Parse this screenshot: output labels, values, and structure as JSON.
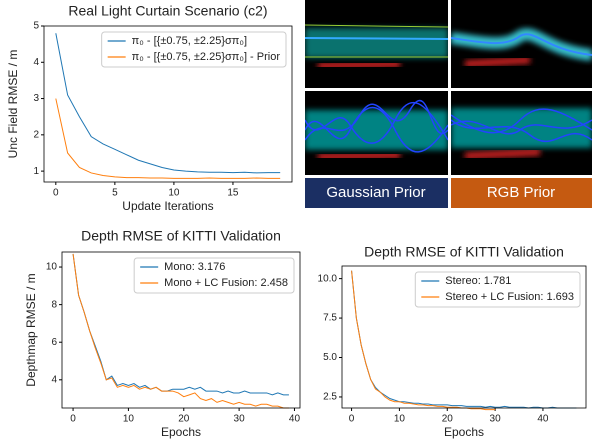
{
  "chart_data": [
    {
      "type": "line",
      "title": "Real Light Curtain Scenario (c2)",
      "xlabel": "Update Iterations",
      "ylabel": "Unc Field RMSE / m",
      "x": [
        0,
        1,
        2,
        3,
        4,
        5,
        6,
        7,
        8,
        9,
        10,
        11,
        12,
        13,
        14,
        15,
        16,
        17,
        18,
        19
      ],
      "series": [
        {
          "name": "π₀ - [{±0.75, ±2.25}σπ₀]",
          "color": "#1f77b4",
          "values": [
            4.8,
            3.1,
            2.5,
            1.95,
            1.75,
            1.6,
            1.45,
            1.3,
            1.2,
            1.1,
            1.03,
            1.0,
            0.98,
            0.97,
            0.97,
            0.96,
            0.97,
            0.95,
            0.96,
            0.96
          ]
        },
        {
          "name": "π₀ - [{±0.75, ±2.25}σπ₀] - Prior",
          "color": "#ff7f0e",
          "values": [
            3.0,
            1.5,
            1.1,
            0.95,
            0.88,
            0.84,
            0.82,
            0.82,
            0.81,
            0.81,
            0.8,
            0.8,
            0.8,
            0.81,
            0.8,
            0.8,
            0.8,
            0.81,
            0.8,
            0.8
          ]
        }
      ],
      "xlim": [
        -1,
        20
      ],
      "xticks": [
        0,
        5,
        10,
        15
      ],
      "ylim": [
        0.7,
        5.0
      ],
      "yticks": [
        1,
        2,
        3,
        4,
        5
      ],
      "legend": "upper right"
    },
    {
      "type": "line",
      "title": "Depth RMSE of KITTI Validation",
      "xlabel": "Epochs",
      "ylabel": "Depthmap RMSE / m",
      "x": [
        0,
        1,
        2,
        3,
        4,
        5,
        6,
        7,
        8,
        9,
        10,
        11,
        12,
        13,
        14,
        15,
        16,
        17,
        18,
        19,
        20,
        21,
        22,
        23,
        24,
        25,
        26,
        27,
        28,
        29,
        30,
        31,
        32,
        33,
        34,
        35,
        36,
        37,
        38,
        39
      ],
      "series": [
        {
          "name": "Mono: 3.176",
          "color": "#1f77b4",
          "values": [
            10.7,
            8.5,
            7.6,
            6.6,
            5.8,
            5.0,
            4.0,
            4.2,
            3.7,
            3.8,
            3.7,
            3.8,
            3.6,
            3.7,
            3.5,
            3.6,
            3.4,
            3.4,
            3.5,
            3.5,
            3.5,
            3.6,
            3.5,
            3.6,
            3.4,
            3.4,
            3.4,
            3.3,
            3.4,
            3.3,
            3.3,
            3.4,
            3.3,
            3.3,
            3.3,
            3.3,
            3.2,
            3.3,
            3.2,
            3.2
          ]
        },
        {
          "name": "Mono + LC Fusion: 2.458",
          "color": "#ff7f0e",
          "values": [
            10.7,
            8.5,
            7.6,
            6.6,
            5.7,
            4.9,
            4.0,
            4.1,
            3.6,
            3.7,
            3.6,
            3.7,
            3.5,
            3.6,
            3.5,
            3.6,
            3.4,
            3.4,
            3.4,
            3.3,
            3.1,
            3.2,
            3.3,
            3.0,
            2.9,
            3.0,
            2.8,
            2.9,
            2.8,
            2.7,
            2.8,
            2.7,
            2.7,
            2.6,
            2.7,
            2.7,
            2.6,
            2.6,
            2.5,
            2.5
          ]
        }
      ],
      "xlim": [
        -2,
        41
      ],
      "xticks": [
        0,
        10,
        20,
        30,
        40
      ],
      "ylim": [
        2.5,
        10.8
      ],
      "yticks": [
        4,
        6,
        8,
        10
      ],
      "legend": "upper right"
    },
    {
      "type": "line",
      "title": "Depth RMSE of KITTI Validation",
      "xlabel": "Epochs",
      "x": [
        0,
        1,
        2,
        3,
        4,
        5,
        6,
        7,
        8,
        9,
        10,
        11,
        12,
        13,
        14,
        15,
        16,
        17,
        18,
        19,
        20,
        21,
        22,
        23,
        24,
        25,
        26,
        27,
        28,
        29,
        30,
        31,
        32,
        33,
        34,
        35,
        36,
        37,
        38,
        39,
        40,
        41,
        42,
        43,
        44,
        45,
        46,
        47
      ],
      "series": [
        {
          "name": "Stereo: 1.781",
          "color": "#1f77b4",
          "values": [
            10.5,
            7.5,
            5.8,
            4.6,
            3.6,
            3.1,
            2.8,
            2.6,
            2.4,
            2.3,
            2.2,
            2.2,
            2.15,
            2.1,
            2.1,
            2.05,
            2.05,
            2.0,
            2.0,
            2.0,
            2.0,
            1.95,
            1.95,
            1.95,
            1.9,
            1.9,
            1.9,
            1.9,
            1.85,
            1.9,
            1.85,
            1.85,
            1.9,
            1.85,
            1.85,
            1.85,
            1.85,
            1.8,
            1.85,
            1.85,
            1.8,
            1.8,
            1.85,
            1.8,
            1.8,
            1.8,
            1.8,
            1.8
          ]
        },
        {
          "name": "Stereo + LC Fusion: 1.693",
          "color": "#ff7f0e",
          "values": [
            10.5,
            7.5,
            5.8,
            4.6,
            3.6,
            3.0,
            2.8,
            2.5,
            2.3,
            2.2,
            2.2,
            2.1,
            2.1,
            2.05,
            2.0,
            2.0,
            1.95,
            1.95,
            1.9,
            1.9,
            1.85,
            1.85,
            1.85,
            1.8,
            1.8,
            1.75,
            1.75,
            1.75,
            1.7,
            1.7,
            1.7,
            null,
            null,
            null,
            null,
            null,
            null,
            null,
            null,
            null,
            null,
            null,
            null,
            null,
            null,
            null,
            null,
            null
          ]
        }
      ],
      "xlim": [
        -2,
        49
      ],
      "xticks": [
        0,
        10,
        20,
        30,
        40
      ],
      "ylim": [
        1.8,
        10.8
      ],
      "yticks": [
        {
          "value": 2.5,
          "label": "2.5"
        },
        {
          "value": 5,
          "label": "5.0"
        },
        {
          "value": 7.5,
          "label": "7.5"
        },
        {
          "value": 10,
          "label": "10.0"
        }
      ],
      "legend": "upper right"
    }
  ],
  "image_panel": {
    "labels": [
      "Gaussian Prior",
      "RGB Prior"
    ]
  }
}
